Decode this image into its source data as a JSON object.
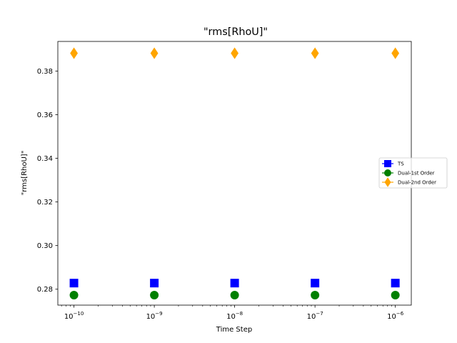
{
  "chart_data": {
    "type": "scatter",
    "title": "\"rms[RhoU]\"",
    "xlabel": "Time Step",
    "ylabel": "\"rms[RhoU]\"",
    "xscale": "log",
    "xlim": [
      6.3e-11,
      1.58e-06
    ],
    "ylim": [
      0.2727,
      0.3936
    ],
    "x": [
      1e-10,
      1e-09,
      1e-08,
      1e-07,
      1e-06
    ],
    "x_ticks": [
      1e-10,
      1e-09,
      1e-08,
      1e-07,
      1e-06
    ],
    "x_tick_labels": [
      {
        "base": "10",
        "exp": "−10"
      },
      {
        "base": "10",
        "exp": "−9"
      },
      {
        "base": "10",
        "exp": "−8"
      },
      {
        "base": "10",
        "exp": "−7"
      },
      {
        "base": "10",
        "exp": "−6"
      }
    ],
    "y_ticks": [
      0.28,
      0.3,
      0.32,
      0.34,
      0.36,
      0.38
    ],
    "y_tick_labels": [
      "0.28",
      "0.30",
      "0.32",
      "0.34",
      "0.36",
      "0.38"
    ],
    "grid": false,
    "legend_position": "center-right",
    "series": [
      {
        "name": "TS",
        "marker": "square",
        "color": "#0000ff",
        "values": [
          0.2828,
          0.2828,
          0.2828,
          0.2828,
          0.2828
        ]
      },
      {
        "name": "Dual-1st Order",
        "marker": "circle",
        "color": "#008000",
        "values": [
          0.2773,
          0.2773,
          0.2773,
          0.2773,
          0.2773
        ]
      },
      {
        "name": "Dual-2nd Order",
        "marker": "diamond",
        "color": "#ffa500",
        "values": [
          0.3882,
          0.3882,
          0.3882,
          0.3882,
          0.3882
        ]
      }
    ]
  }
}
